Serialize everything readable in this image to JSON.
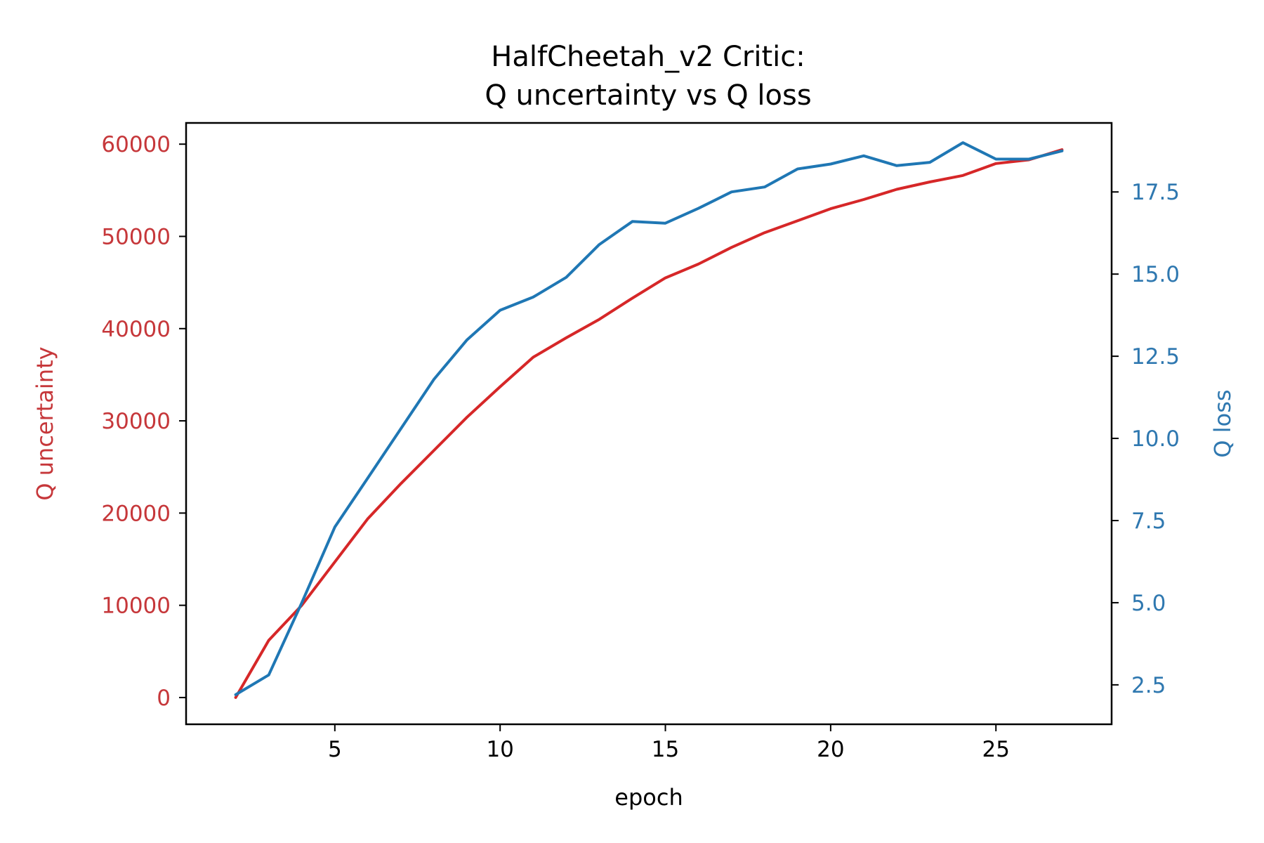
{
  "chart_data": {
    "type": "line",
    "title": "HalfCheetah_v2 Critic:",
    "subtitle": "Q uncertainty vs Q loss",
    "xlabel": "epoch",
    "ylabel_left": "Q uncertainty",
    "ylabel_right": "Q loss",
    "xlim": [
      0.5,
      28.5
    ],
    "ylim_left": [
      -2900,
      62300
    ],
    "ylim_right": [
      1.3,
      19.6
    ],
    "x_ticks": [
      5,
      10,
      15,
      20,
      25
    ],
    "x_tick_labels": [
      "5",
      "10",
      "15",
      "20",
      "25"
    ],
    "y_left_ticks": [
      0,
      10000,
      20000,
      30000,
      40000,
      50000,
      60000
    ],
    "y_left_tick_labels": [
      "0",
      "10000",
      "20000",
      "30000",
      "40000",
      "50000",
      "60000"
    ],
    "y_right_ticks": [
      2.5,
      5.0,
      7.5,
      10.0,
      12.5,
      15.0,
      17.5
    ],
    "y_right_tick_labels": [
      "2.5",
      "5.0",
      "7.5",
      "10.0",
      "12.5",
      "15.0",
      "17.5"
    ],
    "grid": false,
    "x": [
      2,
      3,
      4,
      5,
      6,
      7,
      8,
      9,
      10,
      11,
      12,
      13,
      14,
      15,
      16,
      17,
      18,
      19,
      20,
      21,
      22,
      23,
      24,
      25,
      26,
      27
    ],
    "series": [
      {
        "name": "Q uncertainty",
        "axis": "left",
        "color": "#d62728",
        "values": [
          0,
          6200,
          10000,
          14700,
          19400,
          23200,
          26800,
          30400,
          33700,
          36900,
          39000,
          41000,
          43300,
          45500,
          47000,
          48800,
          50400,
          51700,
          53000,
          54000,
          55100,
          55900,
          56600,
          57900,
          58300,
          59400
        ]
      },
      {
        "name": "Q loss",
        "axis": "right",
        "color": "#1f77b4",
        "values": [
          2.2,
          2.8,
          5.0,
          7.3,
          8.8,
          10.3,
          11.8,
          13.0,
          13.9,
          14.3,
          14.9,
          15.9,
          16.6,
          16.55,
          17.0,
          17.5,
          17.65,
          18.2,
          18.35,
          18.6,
          18.3,
          18.4,
          19.0,
          18.5,
          18.5,
          18.75
        ]
      }
    ]
  }
}
